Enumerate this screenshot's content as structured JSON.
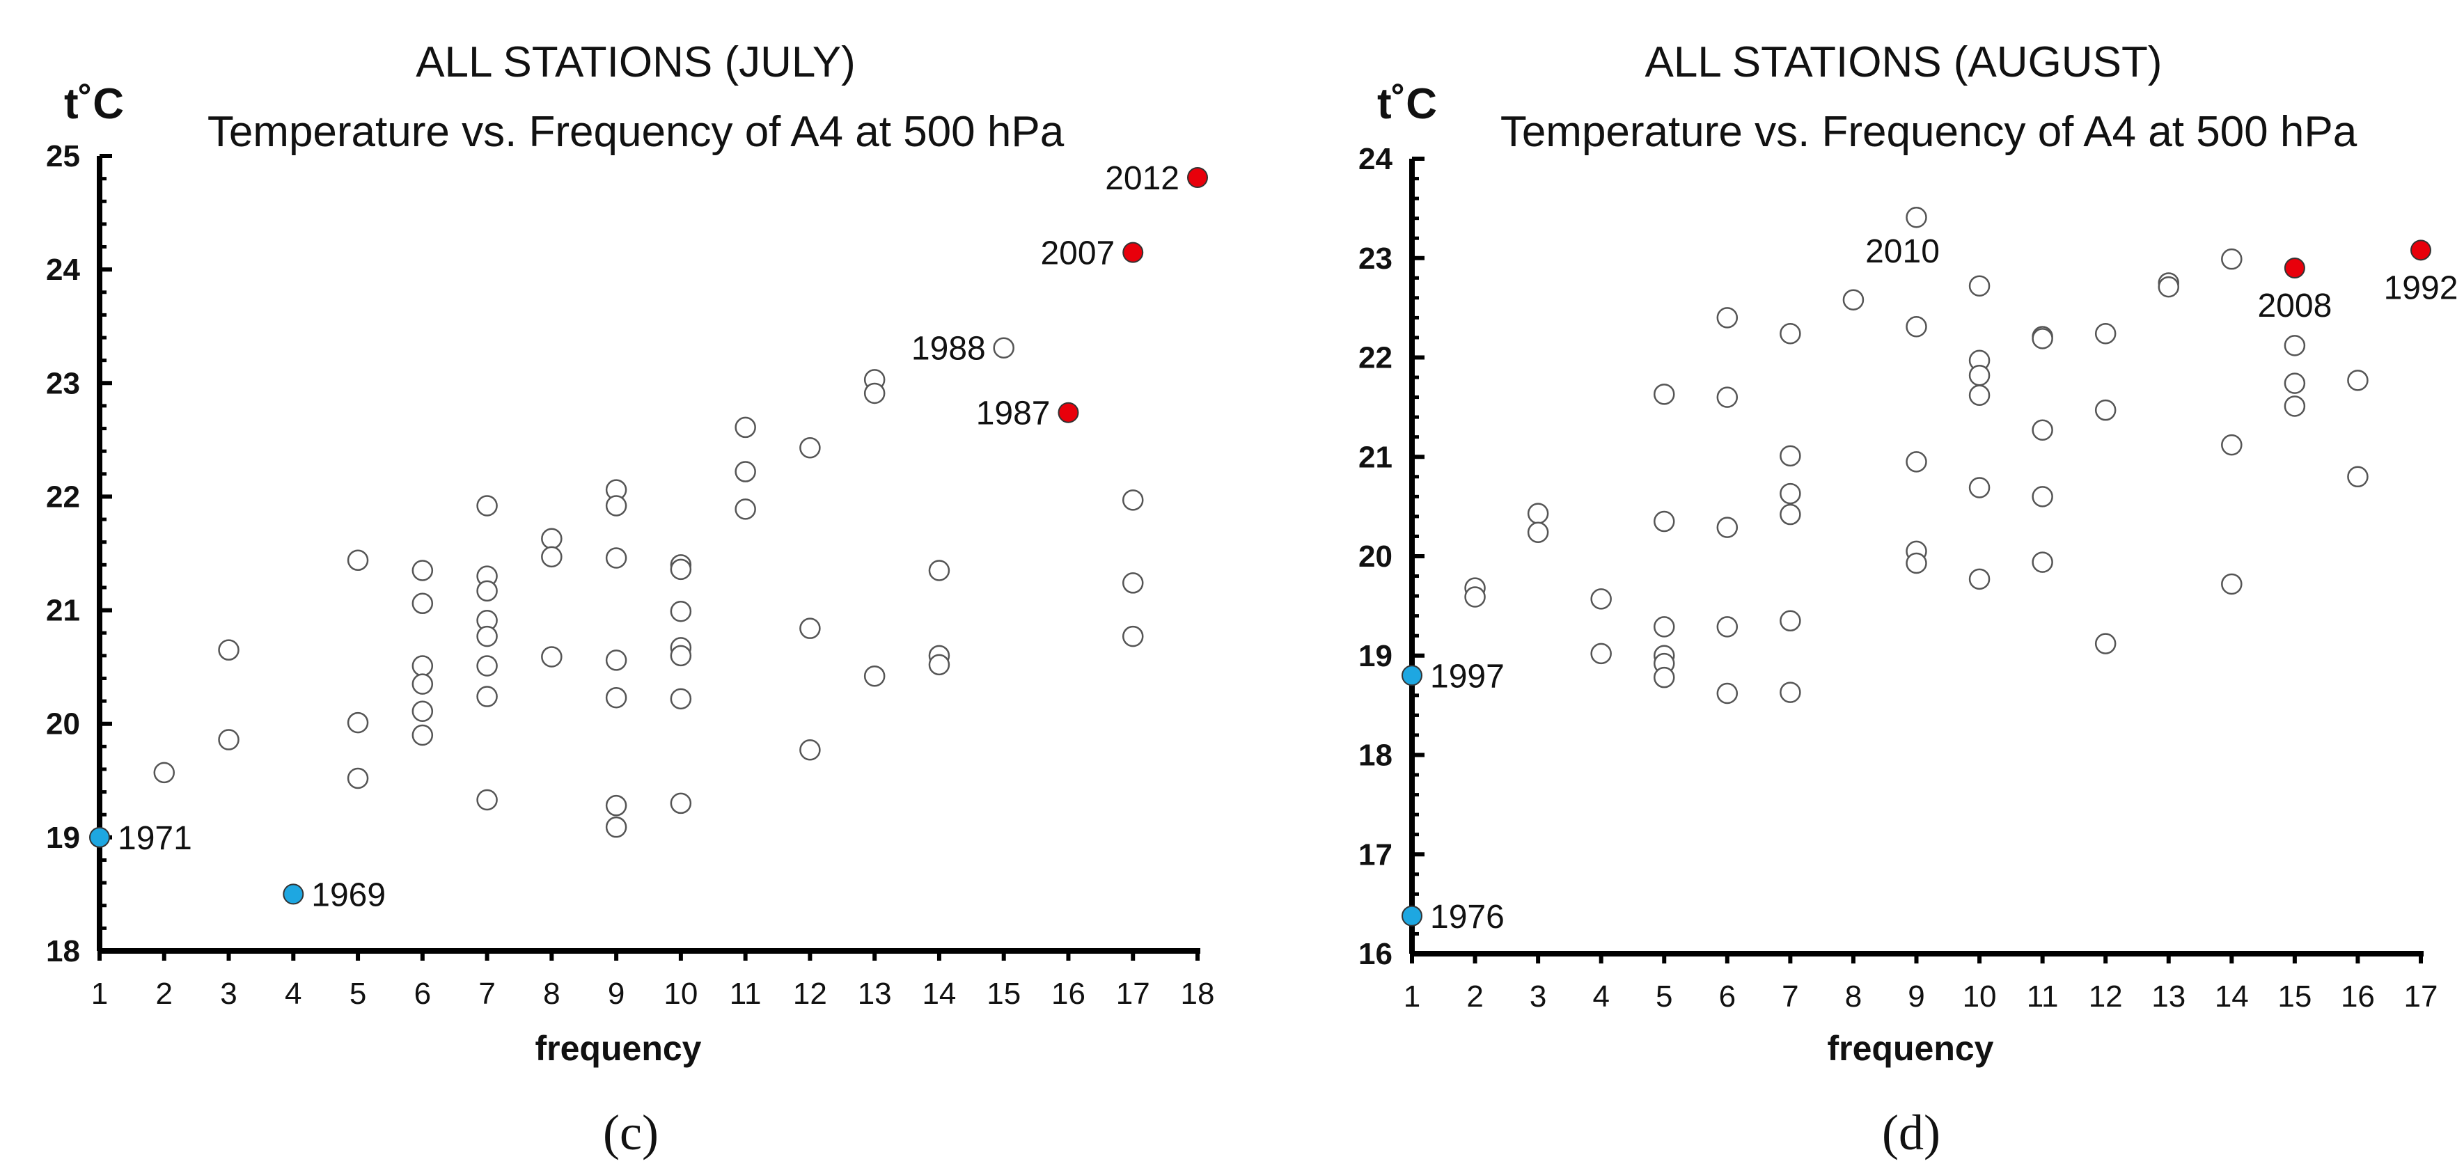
{
  "chart_data": [
    {
      "type": "scatter",
      "panel_label": "(c)",
      "title": [
        "ALL STATIONS (JULY)",
        "Temperature vs. Frequency of A4 at 500 hPa"
      ],
      "xlabel": "frequency",
      "ylabel": "t˚C",
      "xlim": [
        1,
        18
      ],
      "ylim": [
        18,
        25
      ],
      "xticks": [
        1,
        2,
        3,
        4,
        5,
        6,
        7,
        8,
        9,
        10,
        11,
        12,
        13,
        14,
        15,
        16,
        17,
        18
      ],
      "yticks": [
        18,
        19,
        20,
        21,
        22,
        23,
        24,
        25
      ],
      "colors": {
        "open": "#ffffff",
        "hot": "#e8000b",
        "cold": "#1ea7e1"
      },
      "points": [
        {
          "x": 1,
          "y": 19.0,
          "kind": "cold",
          "label": "1971"
        },
        {
          "x": 2,
          "y": 19.57,
          "kind": "open"
        },
        {
          "x": 3,
          "y": 20.65,
          "kind": "open"
        },
        {
          "x": 3,
          "y": 19.86,
          "kind": "open"
        },
        {
          "x": 4,
          "y": 18.5,
          "kind": "cold",
          "label": "1969"
        },
        {
          "x": 5,
          "y": 21.44,
          "kind": "open"
        },
        {
          "x": 5,
          "y": 20.01,
          "kind": "open"
        },
        {
          "x": 5,
          "y": 19.52,
          "kind": "open"
        },
        {
          "x": 6,
          "y": 21.35,
          "kind": "open"
        },
        {
          "x": 6,
          "y": 21.06,
          "kind": "open"
        },
        {
          "x": 6,
          "y": 20.51,
          "kind": "open"
        },
        {
          "x": 6,
          "y": 20.35,
          "kind": "open"
        },
        {
          "x": 6,
          "y": 20.11,
          "kind": "open"
        },
        {
          "x": 6,
          "y": 19.9,
          "kind": "open"
        },
        {
          "x": 7,
          "y": 21.92,
          "kind": "open"
        },
        {
          "x": 7,
          "y": 21.3,
          "kind": "open"
        },
        {
          "x": 7,
          "y": 21.17,
          "kind": "open"
        },
        {
          "x": 7,
          "y": 20.91,
          "kind": "open"
        },
        {
          "x": 7,
          "y": 20.77,
          "kind": "open"
        },
        {
          "x": 7,
          "y": 20.51,
          "kind": "open"
        },
        {
          "x": 7,
          "y": 20.24,
          "kind": "open"
        },
        {
          "x": 7,
          "y": 19.33,
          "kind": "open"
        },
        {
          "x": 8,
          "y": 21.63,
          "kind": "open"
        },
        {
          "x": 8,
          "y": 21.47,
          "kind": "open"
        },
        {
          "x": 8,
          "y": 20.59,
          "kind": "open"
        },
        {
          "x": 9,
          "y": 22.06,
          "kind": "open"
        },
        {
          "x": 9,
          "y": 21.92,
          "kind": "open"
        },
        {
          "x": 9,
          "y": 21.46,
          "kind": "open"
        },
        {
          "x": 9,
          "y": 20.56,
          "kind": "open"
        },
        {
          "x": 9,
          "y": 20.23,
          "kind": "open"
        },
        {
          "x": 9,
          "y": 19.28,
          "kind": "open"
        },
        {
          "x": 9,
          "y": 19.09,
          "kind": "open"
        },
        {
          "x": 10,
          "y": 21.4,
          "kind": "open"
        },
        {
          "x": 10,
          "y": 21.36,
          "kind": "open"
        },
        {
          "x": 10,
          "y": 20.99,
          "kind": "open"
        },
        {
          "x": 10,
          "y": 20.67,
          "kind": "open"
        },
        {
          "x": 10,
          "y": 20.6,
          "kind": "open"
        },
        {
          "x": 10,
          "y": 20.22,
          "kind": "open"
        },
        {
          "x": 10,
          "y": 19.3,
          "kind": "open"
        },
        {
          "x": 11,
          "y": 22.61,
          "kind": "open"
        },
        {
          "x": 11,
          "y": 22.22,
          "kind": "open"
        },
        {
          "x": 11,
          "y": 21.89,
          "kind": "open"
        },
        {
          "x": 12,
          "y": 22.43,
          "kind": "open"
        },
        {
          "x": 12,
          "y": 20.84,
          "kind": "open"
        },
        {
          "x": 12,
          "y": 19.77,
          "kind": "open"
        },
        {
          "x": 13,
          "y": 23.03,
          "kind": "open"
        },
        {
          "x": 13,
          "y": 22.91,
          "kind": "open"
        },
        {
          "x": 13,
          "y": 20.42,
          "kind": "open"
        },
        {
          "x": 14,
          "y": 21.35,
          "kind": "open"
        },
        {
          "x": 14,
          "y": 20.6,
          "kind": "open"
        },
        {
          "x": 14,
          "y": 20.52,
          "kind": "open"
        },
        {
          "x": 15,
          "y": 23.31,
          "kind": "open",
          "label": "1988"
        },
        {
          "x": 16,
          "y": 22.74,
          "kind": "hot",
          "label": "1987"
        },
        {
          "x": 17,
          "y": 24.15,
          "kind": "hot",
          "label": "2007"
        },
        {
          "x": 17,
          "y": 21.97,
          "kind": "open"
        },
        {
          "x": 17,
          "y": 21.24,
          "kind": "open"
        },
        {
          "x": 17,
          "y": 20.77,
          "kind": "open"
        },
        {
          "x": 18,
          "y": 24.81,
          "kind": "hot",
          "label": "2012"
        }
      ]
    },
    {
      "type": "scatter",
      "panel_label": "(d)",
      "title": [
        "ALL STATIONS (AUGUST)",
        "Temperature vs. Frequency of A4 at 500 hPa"
      ],
      "xlabel": "frequency",
      "ylabel": "t˚C",
      "xlim": [
        1,
        17
      ],
      "ylim": [
        16,
        24
      ],
      "xticks": [
        1,
        2,
        3,
        4,
        5,
        6,
        7,
        8,
        9,
        10,
        11,
        12,
        13,
        14,
        15,
        16,
        17
      ],
      "yticks": [
        16,
        17,
        18,
        19,
        20,
        21,
        22,
        23,
        24
      ],
      "colors": {
        "open": "#ffffff",
        "hot": "#e8000b",
        "cold": "#1ea7e1"
      },
      "points": [
        {
          "x": 1,
          "y": 18.8,
          "kind": "cold",
          "label": "1997"
        },
        {
          "x": 1,
          "y": 16.38,
          "kind": "cold",
          "label": "1976"
        },
        {
          "x": 2,
          "y": 19.68,
          "kind": "open"
        },
        {
          "x": 2,
          "y": 19.59,
          "kind": "open"
        },
        {
          "x": 3,
          "y": 20.43,
          "kind": "open"
        },
        {
          "x": 3,
          "y": 20.24,
          "kind": "open"
        },
        {
          "x": 4,
          "y": 19.57,
          "kind": "open"
        },
        {
          "x": 4,
          "y": 19.02,
          "kind": "open"
        },
        {
          "x": 5,
          "y": 21.63,
          "kind": "open"
        },
        {
          "x": 5,
          "y": 20.35,
          "kind": "open"
        },
        {
          "x": 5,
          "y": 19.29,
          "kind": "open"
        },
        {
          "x": 5,
          "y": 19.0,
          "kind": "open"
        },
        {
          "x": 5,
          "y": 18.92,
          "kind": "open"
        },
        {
          "x": 5,
          "y": 18.78,
          "kind": "open"
        },
        {
          "x": 6,
          "y": 22.4,
          "kind": "open"
        },
        {
          "x": 6,
          "y": 21.6,
          "kind": "open"
        },
        {
          "x": 6,
          "y": 20.29,
          "kind": "open"
        },
        {
          "x": 6,
          "y": 19.29,
          "kind": "open"
        },
        {
          "x": 6,
          "y": 18.62,
          "kind": "open"
        },
        {
          "x": 7,
          "y": 22.24,
          "kind": "open"
        },
        {
          "x": 7,
          "y": 21.01,
          "kind": "open"
        },
        {
          "x": 7,
          "y": 20.63,
          "kind": "open"
        },
        {
          "x": 7,
          "y": 20.42,
          "kind": "open"
        },
        {
          "x": 7,
          "y": 19.35,
          "kind": "open"
        },
        {
          "x": 7,
          "y": 18.63,
          "kind": "open"
        },
        {
          "x": 8,
          "y": 22.58,
          "kind": "open"
        },
        {
          "x": 9,
          "y": 23.41,
          "kind": "open",
          "label": "2010"
        },
        {
          "x": 9,
          "y": 22.31,
          "kind": "open"
        },
        {
          "x": 9,
          "y": 20.95,
          "kind": "open"
        },
        {
          "x": 9,
          "y": 20.05,
          "kind": "open"
        },
        {
          "x": 9,
          "y": 19.93,
          "kind": "open"
        },
        {
          "x": 10,
          "y": 22.72,
          "kind": "open"
        },
        {
          "x": 10,
          "y": 21.97,
          "kind": "open"
        },
        {
          "x": 10,
          "y": 21.82,
          "kind": "open"
        },
        {
          "x": 10,
          "y": 21.62,
          "kind": "open"
        },
        {
          "x": 10,
          "y": 20.69,
          "kind": "open"
        },
        {
          "x": 10,
          "y": 19.77,
          "kind": "open"
        },
        {
          "x": 11,
          "y": 22.21,
          "kind": "open"
        },
        {
          "x": 11,
          "y": 22.19,
          "kind": "open"
        },
        {
          "x": 11,
          "y": 21.27,
          "kind": "open"
        },
        {
          "x": 11,
          "y": 20.6,
          "kind": "open"
        },
        {
          "x": 11,
          "y": 19.94,
          "kind": "open"
        },
        {
          "x": 12,
          "y": 22.24,
          "kind": "open"
        },
        {
          "x": 12,
          "y": 21.47,
          "kind": "open"
        },
        {
          "x": 12,
          "y": 19.12,
          "kind": "open"
        },
        {
          "x": 13,
          "y": 22.75,
          "kind": "open"
        },
        {
          "x": 13,
          "y": 22.71,
          "kind": "open"
        },
        {
          "x": 14,
          "y": 22.99,
          "kind": "open"
        },
        {
          "x": 14,
          "y": 21.12,
          "kind": "open"
        },
        {
          "x": 14,
          "y": 19.72,
          "kind": "open"
        },
        {
          "x": 15,
          "y": 22.9,
          "kind": "hot",
          "label": "2008"
        },
        {
          "x": 15,
          "y": 22.12,
          "kind": "open"
        },
        {
          "x": 15,
          "y": 21.74,
          "kind": "open"
        },
        {
          "x": 15,
          "y": 21.51,
          "kind": "open"
        },
        {
          "x": 16,
          "y": 21.77,
          "kind": "open"
        },
        {
          "x": 16,
          "y": 20.8,
          "kind": "open"
        },
        {
          "x": 17,
          "y": 23.08,
          "kind": "hot",
          "label": "1992"
        }
      ]
    }
  ]
}
